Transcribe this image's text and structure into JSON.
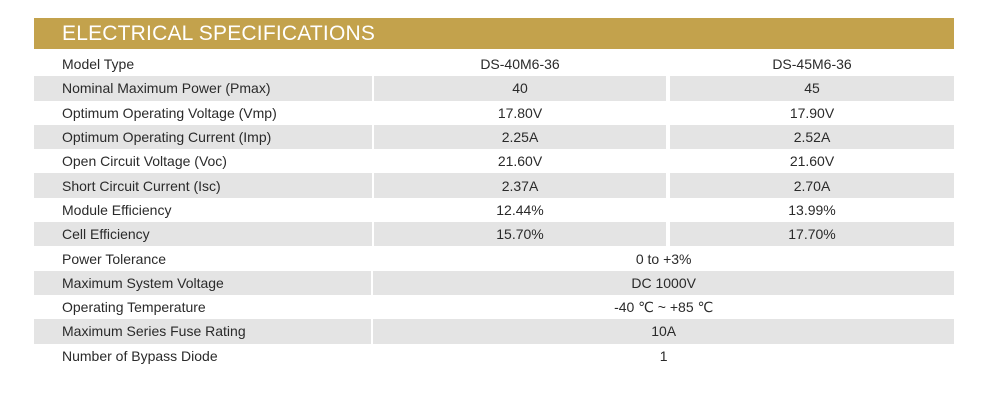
{
  "title": "ELECTRICAL SPECIFICATIONS",
  "header": {
    "label": "Model Type",
    "model_a": "DS-40M6-36",
    "model_b": "DS-45M6-36"
  },
  "rows": [
    {
      "label": "Nominal Maximum Power (Pmax)",
      "a": "40",
      "b": "45"
    },
    {
      "label": "Optimum Operating Voltage (Vmp)",
      "a": "17.80V",
      "b": "17.90V"
    },
    {
      "label": "Optimum Operating Current (Imp)",
      "a": "2.25A",
      "b": "2.52A"
    },
    {
      "label": "Open Circuit Voltage (Voc)",
      "a": "21.60V",
      "b": "21.60V"
    },
    {
      "label": "Short Circuit Current (Isc)",
      "a": "2.37A",
      "b": "2.70A"
    },
    {
      "label": "Module Efficiency",
      "a": "12.44%",
      "b": "13.99%"
    },
    {
      "label": "Cell Efficiency",
      "a": "15.70%",
      "b": "17.70%"
    }
  ],
  "shared_rows": [
    {
      "label": "Power Tolerance",
      "value": "0 to +3%"
    },
    {
      "label": "Maximum System Voltage",
      "value": "DC 1000V"
    },
    {
      "label": "Operating Temperature",
      "value": "-40 ℃ ~ +85 ℃"
    },
    {
      "label": "Maximum Series Fuse Rating",
      "value": "10A"
    },
    {
      "label": "Number of Bypass Diode",
      "value": "1"
    }
  ],
  "colors": {
    "banner": "#c3a24c",
    "shade": "#e4e4e4"
  }
}
